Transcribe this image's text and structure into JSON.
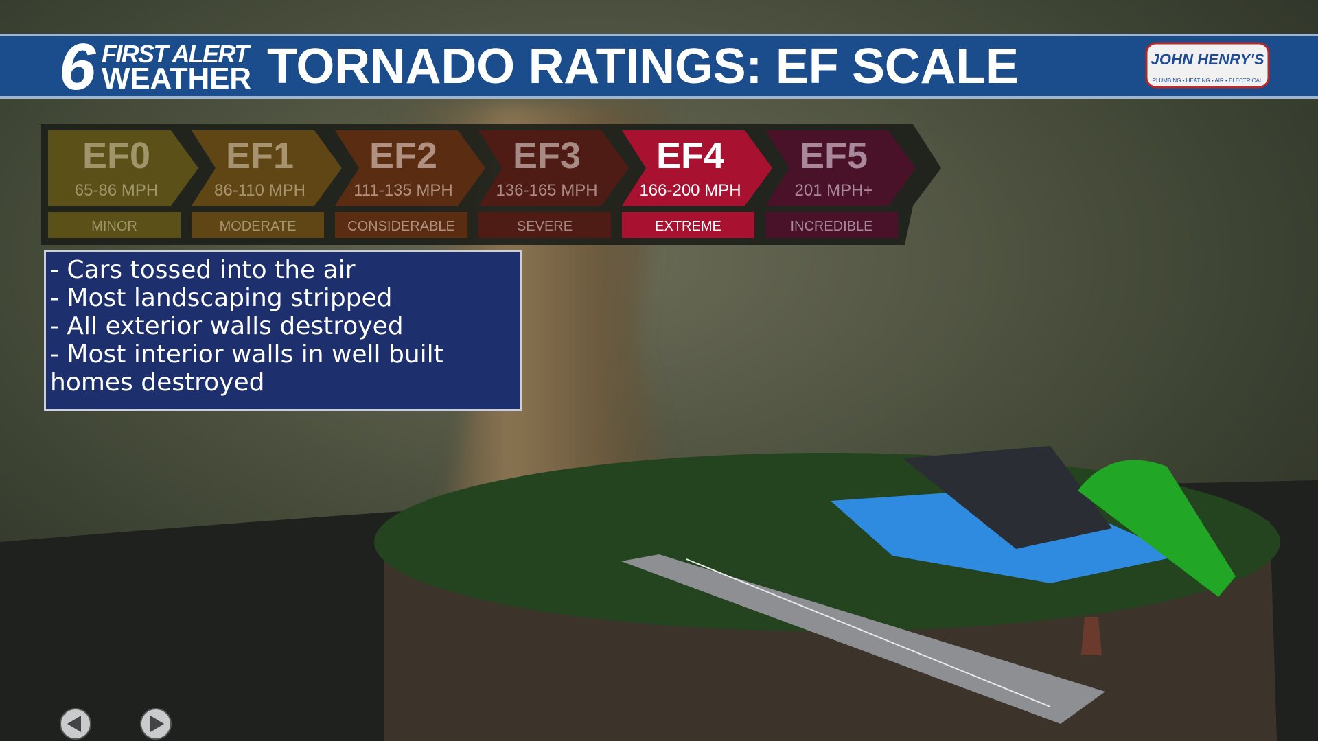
{
  "header": {
    "logo_number": "6",
    "logo_line1": "FIRST ALERT",
    "logo_line2": "WEATHER",
    "title": "TORNADO RATINGS: EF SCALE",
    "sponsor": "JOHN HENRY'S",
    "sponsor_tagline": "PLUMBING • HEATING • AIR • ELECTRICAL"
  },
  "ef_scale": [
    {
      "name": "EF0",
      "speed": "65-86 MPH",
      "rating": "MINOR"
    },
    {
      "name": "EF1",
      "speed": "86-110 MPH",
      "rating": "MODERATE"
    },
    {
      "name": "EF2",
      "speed": "111-135 MPH",
      "rating": "CONSIDERABLE"
    },
    {
      "name": "EF3",
      "speed": "136-165 MPH",
      "rating": "SEVERE"
    },
    {
      "name": "EF4",
      "speed": "166-200 MPH",
      "rating": "EXTREME"
    },
    {
      "name": "EF5",
      "speed": "201 MPH+",
      "rating": "INCREDIBLE"
    }
  ],
  "description": [
    "- Cars tossed into the air",
    "- Most landscaping stripped",
    "- All exterior walls destroyed",
    "- Most interior walls in well built homes destroyed"
  ]
}
